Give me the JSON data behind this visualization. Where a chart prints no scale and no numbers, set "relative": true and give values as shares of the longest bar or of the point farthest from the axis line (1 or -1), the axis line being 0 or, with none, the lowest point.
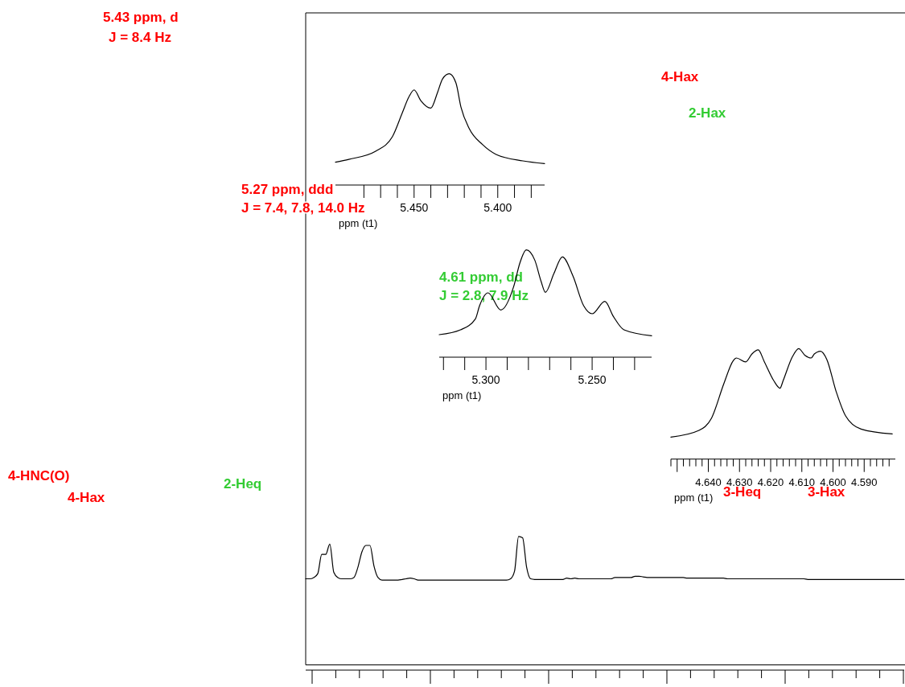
{
  "chart_data": [
    {
      "type": "line",
      "relative": true,
      "tick_labels": false,
      "categories": [
        null,
        null,
        null,
        null,
        null,
        null,
        null,
        null,
        null,
        null,
        null,
        null,
        null,
        null,
        null,
        null,
        null,
        null,
        null,
        null,
        null,
        null,
        null,
        null,
        null,
        null,
        null,
        null,
        null,
        null,
        null,
        null,
        null,
        null,
        null,
        null,
        null,
        null,
        null,
        null,
        null,
        null,
        null,
        null,
        null,
        null,
        null,
        null,
        null,
        null,
        null,
        null,
        null,
        null,
        null,
        null,
        null,
        null,
        null,
        null,
        null,
        null,
        null,
        null,
        null,
        null,
        null,
        null,
        null,
        null,
        null,
        null,
        null,
        null,
        null,
        null,
        null,
        null,
        null,
        null,
        null,
        null,
        null,
        null,
        null,
        null,
        null,
        null,
        null,
        null,
        null,
        null,
        null,
        null,
        null,
        null,
        null,
        null,
        null,
        null,
        null,
        null,
        null,
        null,
        null,
        null,
        null,
        null,
        null,
        null,
        null,
        null,
        null,
        null,
        null,
        null,
        null,
        null,
        null,
        null,
        null,
        null,
        null,
        null,
        null,
        null,
        null,
        null,
        null,
        null,
        null,
        null,
        null,
        null,
        null,
        null,
        null,
        null,
        null,
        null,
        null,
        null,
        null,
        null,
        null,
        null,
        null,
        null,
        null,
        null
      ],
      "series": [
        {
          "color": "#000000",
          "values": [
            0.67,
            0.67,
            0.68,
            0.71,
            0.86,
            0.86,
            0.94,
            0.72,
            0.68,
            0.67,
            0.67,
            0.67,
            0.68,
            0.76,
            0.88,
            0.93,
            0.93,
            0.77,
            0.68,
            0.66,
            0.66,
            0.66,
            0.66,
            0.66,
            0.665,
            0.67,
            0.675,
            0.67,
            0.66,
            0.66,
            0.66,
            0.66,
            0.66,
            0.66,
            0.66,
            0.66,
            0.66,
            0.66,
            0.66,
            0.66,
            0.66,
            0.66,
            0.66,
            0.66,
            0.66,
            0.66,
            0.66,
            0.66,
            0.66,
            0.66,
            0.66,
            0.67,
            0.73,
            1,
            0.99,
            0.76,
            0.67,
            0.665,
            0.665,
            0.665,
            0.665,
            0.665,
            0.665,
            0.665,
            0.665,
            0.675,
            0.67,
            0.675,
            0.67,
            0.67,
            0.67,
            0.67,
            0.67,
            0.67,
            0.67,
            0.67,
            0.67,
            0.68,
            0.68,
            0.68,
            0.68,
            0.68,
            0.69,
            0.69,
            0.685,
            0.68,
            0.68,
            0.68,
            0.68,
            0.68,
            0.68,
            0.68,
            0.68,
            0.68,
            0.68,
            0.675,
            0.675,
            0.675,
            0.675,
            0.675,
            0.675,
            0.675,
            0.675,
            0.675,
            0.675,
            0.67,
            0.67,
            0.67,
            0.67,
            0.67,
            0.67,
            0.67,
            0.67,
            0.67,
            0.67,
            0.67,
            0.67,
            0.67,
            0.67,
            0.67,
            0.67,
            0.67,
            0.67,
            0.67,
            0.67,
            0.665,
            0.665,
            0.665,
            0.665,
            0.665,
            0.665,
            0.665,
            0.665,
            0.665,
            0.665,
            0.665,
            0.665,
            0.665,
            0.665,
            0.665,
            0.665,
            0.665,
            0.665,
            0.665,
            0.665,
            0.665,
            0.665,
            0.665,
            0.665,
            0.665
          ]
        }
      ],
      "annotations": [
        "5.43 ppm, d",
        "J = 8.4 Hz",
        "5.27 ppm, ddd",
        "J = 7.4, 7.8, 14.0 Hz",
        "4.61 ppm, dd",
        "J = 2.8, 7.9 Hz",
        "4-Hax",
        "2-Hax",
        "4-HNC(O)",
        "4-Hax",
        "2-Heq",
        "3-Heq",
        "3-Hax"
      ]
    },
    {
      "type": "line",
      "relative": true,
      "tick_labels": "x",
      "xlabel": "ppm (t1)",
      "xlim": [
        5.497,
        5.372
      ],
      "xticks": [
        {
          "value": 5.48,
          "label": null
        },
        {
          "value": 5.47,
          "label": null
        },
        {
          "value": 5.46,
          "label": null
        },
        {
          "value": 5.45,
          "label": "5.450"
        },
        {
          "value": 5.44,
          "label": null
        },
        {
          "value": 5.43,
          "label": null
        },
        {
          "value": 5.42,
          "label": null
        },
        {
          "value": 5.41,
          "label": null
        },
        {
          "value": 5.4,
          "label": "5.400"
        },
        {
          "value": 5.39,
          "label": null
        },
        {
          "value": 5.38,
          "label": null
        }
      ],
      "series": [
        {
          "color": "#000000",
          "x": [
            5.497,
            5.489,
            5.473,
            5.463,
            5.457,
            5.453,
            5.45,
            5.446,
            5.44,
            5.436,
            5.433,
            5.429,
            5.425,
            5.422,
            5.417,
            5.409,
            5.401,
            5.385,
            5.372
          ],
          "values": [
            0.205,
            0.231,
            0.304,
            0.434,
            0.651,
            0.795,
            0.855,
            0.759,
            0.692,
            0.832,
            0.954,
            1,
            0.918,
            0.701,
            0.506,
            0.362,
            0.275,
            0.217,
            0.193
          ]
        }
      ]
    },
    {
      "type": "line",
      "relative": true,
      "tick_labels": "x",
      "xlabel": "ppm (t1)",
      "xlim": [
        5.322,
        5.222
      ],
      "xticks": [
        {
          "value": 5.32,
          "label": null
        },
        {
          "value": 5.31,
          "label": null
        },
        {
          "value": 5.3,
          "label": "5.300"
        },
        {
          "value": 5.29,
          "label": null
        },
        {
          "value": 5.28,
          "label": null
        },
        {
          "value": 5.27,
          "label": null
        },
        {
          "value": 5.26,
          "label": null
        },
        {
          "value": 5.25,
          "label": "5.250"
        },
        {
          "value": 5.24,
          "label": null
        },
        {
          "value": 5.23,
          "label": null
        }
      ],
      "series": [
        {
          "color": "#000000",
          "x": [
            5.322,
            5.312,
            5.305,
            5.303,
            5.299,
            5.293,
            5.287,
            5.284,
            5.281,
            5.277,
            5.274,
            5.272,
            5.268,
            5.264,
            5.259,
            5.254,
            5.25,
            5.244,
            5.24,
            5.235,
            5.222
          ],
          "values": [
            0.21,
            0.255,
            0.355,
            0.48,
            0.6,
            0.44,
            0.655,
            0.88,
            1,
            0.905,
            0.705,
            0.605,
            0.78,
            0.935,
            0.755,
            0.48,
            0.405,
            0.52,
            0.38,
            0.255,
            0.2
          ]
        }
      ]
    },
    {
      "type": "line",
      "relative": true,
      "tick_labels": "x",
      "xlabel": "ppm (t1)",
      "xlim": [
        4.652,
        4.58
      ],
      "xticks": [
        {
          "value": 4.652,
          "label": null
        },
        {
          "value": 4.65,
          "label": null
        },
        {
          "value": 4.648,
          "label": null
        },
        {
          "value": 4.646,
          "label": null
        },
        {
          "value": 4.644,
          "label": null
        },
        {
          "value": 4.642,
          "label": null
        },
        {
          "value": 4.64,
          "label": "4.640"
        },
        {
          "value": 4.638,
          "label": null
        },
        {
          "value": 4.636,
          "label": null
        },
        {
          "value": 4.634,
          "label": null
        },
        {
          "value": 4.632,
          "label": null
        },
        {
          "value": 4.63,
          "label": "4.630"
        },
        {
          "value": 4.628,
          "label": null
        },
        {
          "value": 4.626,
          "label": null
        },
        {
          "value": 4.624,
          "label": null
        },
        {
          "value": 4.622,
          "label": null
        },
        {
          "value": 4.62,
          "label": "4.620"
        },
        {
          "value": 4.618,
          "label": null
        },
        {
          "value": 4.616,
          "label": null
        },
        {
          "value": 4.614,
          "label": null
        },
        {
          "value": 4.612,
          "label": null
        },
        {
          "value": 4.61,
          "label": "4.610"
        },
        {
          "value": 4.608,
          "label": null
        },
        {
          "value": 4.606,
          "label": null
        },
        {
          "value": 4.604,
          "label": null
        },
        {
          "value": 4.602,
          "label": null
        },
        {
          "value": 4.6,
          "label": "4.600"
        },
        {
          "value": 4.598,
          "label": null
        },
        {
          "value": 4.596,
          "label": null
        },
        {
          "value": 4.594,
          "label": null
        },
        {
          "value": 4.592,
          "label": null
        },
        {
          "value": 4.59,
          "label": "4.590"
        },
        {
          "value": 4.588,
          "label": null
        },
        {
          "value": 4.586,
          "label": null
        },
        {
          "value": 4.584,
          "label": null
        },
        {
          "value": 4.582,
          "label": null
        }
      ],
      "series": [
        {
          "color": "#000000",
          "x": [
            4.652,
            4.643,
            4.639,
            4.635,
            4.632,
            4.631,
            4.628,
            4.626,
            4.624,
            4.622,
            4.619,
            4.617,
            4.616,
            4.613,
            4.611,
            4.609,
            4.607,
            4.606,
            4.604,
            4.602,
            4.599,
            4.596,
            4.591,
            4.581
          ],
          "values": [
            0.199,
            0.26,
            0.369,
            0.684,
            0.891,
            0.915,
            0.879,
            0.951,
            0.988,
            0.879,
            0.709,
            0.641,
            0.709,
            0.927,
            1,
            0.939,
            0.915,
            0.951,
            0.976,
            0.903,
            0.612,
            0.393,
            0.272,
            0.228
          ]
        }
      ]
    }
  ]
}
